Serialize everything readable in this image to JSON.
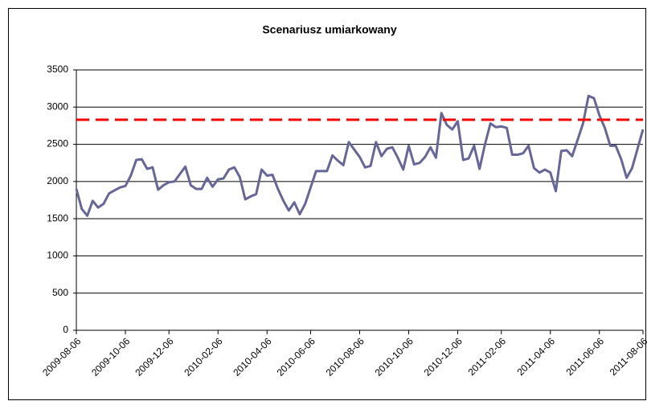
{
  "chart_data": {
    "type": "line",
    "title": "Scenariusz umiarkowany",
    "categories": [
      "2009-08-06",
      null,
      null,
      null,
      null,
      null,
      null,
      null,
      null,
      "2009-10-06",
      null,
      null,
      null,
      null,
      null,
      null,
      null,
      "2009-12-06",
      null,
      null,
      null,
      null,
      null,
      null,
      null,
      null,
      "2010-02-06",
      null,
      null,
      null,
      null,
      null,
      null,
      null,
      null,
      "2010-04-06",
      null,
      null,
      null,
      null,
      null,
      null,
      null,
      "2010-06-06",
      null,
      null,
      null,
      null,
      null,
      null,
      null,
      null,
      "2010-08-06",
      null,
      null,
      null,
      null,
      null,
      null,
      null,
      null,
      "2010-10-06",
      null,
      null,
      null,
      null,
      null,
      null,
      null,
      null,
      "2010-12-06",
      null,
      null,
      null,
      null,
      null,
      null,
      null,
      "2011-02-06",
      null,
      null,
      null,
      null,
      null,
      null,
      null,
      null,
      "2011-04-06",
      null,
      null,
      null,
      null,
      null,
      null,
      null,
      null,
      "2011-06-06",
      null,
      null,
      null,
      null,
      null,
      null,
      null,
      "2011-08-06"
    ],
    "values": [
      1900,
      1630,
      1540,
      1740,
      1650,
      1700,
      1840,
      1880,
      1920,
      1940,
      2080,
      2290,
      2300,
      2170,
      2190,
      1890,
      1950,
      1990,
      2000,
      2100,
      2200,
      1950,
      1900,
      1900,
      2050,
      1930,
      2030,
      2040,
      2160,
      2190,
      2060,
      1760,
      1800,
      1830,
      2160,
      2080,
      2090,
      1900,
      1740,
      1610,
      1720,
      1560,
      1700,
      1920,
      2140,
      2140,
      2140,
      2350,
      2280,
      2220,
      2530,
      2430,
      2330,
      2190,
      2210,
      2530,
      2340,
      2440,
      2460,
      2320,
      2160,
      2480,
      2230,
      2250,
      2330,
      2460,
      2320,
      2920,
      2760,
      2700,
      2810,
      2290,
      2310,
      2480,
      2170,
      2500,
      2780,
      2730,
      2740,
      2720,
      2360,
      2360,
      2380,
      2480,
      2180,
      2120,
      2160,
      2120,
      1870,
      2410,
      2420,
      2340,
      2560,
      2780,
      3150,
      3120,
      2890,
      2720,
      2480,
      2480,
      2300,
      2050,
      2180,
      2440,
      2700
    ],
    "color": "#666699",
    "reference_line": {
      "value": 2830,
      "color": "#ff0000"
    },
    "ylim": [
      0,
      3500
    ],
    "yticks": [
      0,
      500,
      1000,
      1500,
      2000,
      2500,
      3000,
      3500
    ],
    "grid": true
  }
}
